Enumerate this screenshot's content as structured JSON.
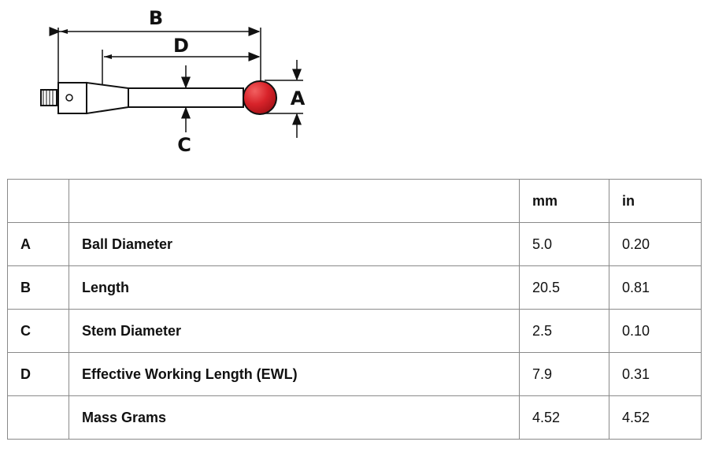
{
  "diagram": {
    "labels": {
      "A": "A",
      "B": "B",
      "C": "C",
      "D": "D"
    },
    "colors": {
      "ball": "#d8232a",
      "outline": "#111111"
    }
  },
  "table": {
    "headers": [
      "",
      "",
      "mm",
      "in"
    ],
    "rows": [
      {
        "key": "A",
        "name": "Ball Diameter",
        "mm": "5.0",
        "in": "0.20"
      },
      {
        "key": "B",
        "name": "Length",
        "mm": "20.5",
        "in": "0.81"
      },
      {
        "key": "C",
        "name": "Stem Diameter",
        "mm": "2.5",
        "in": "0.10"
      },
      {
        "key": "D",
        "name": "Effective Working Length (EWL)",
        "mm": "7.9",
        "in": "0.31"
      },
      {
        "key": "",
        "name": "Mass Grams",
        "mm": "4.52",
        "in": "4.52"
      }
    ]
  }
}
